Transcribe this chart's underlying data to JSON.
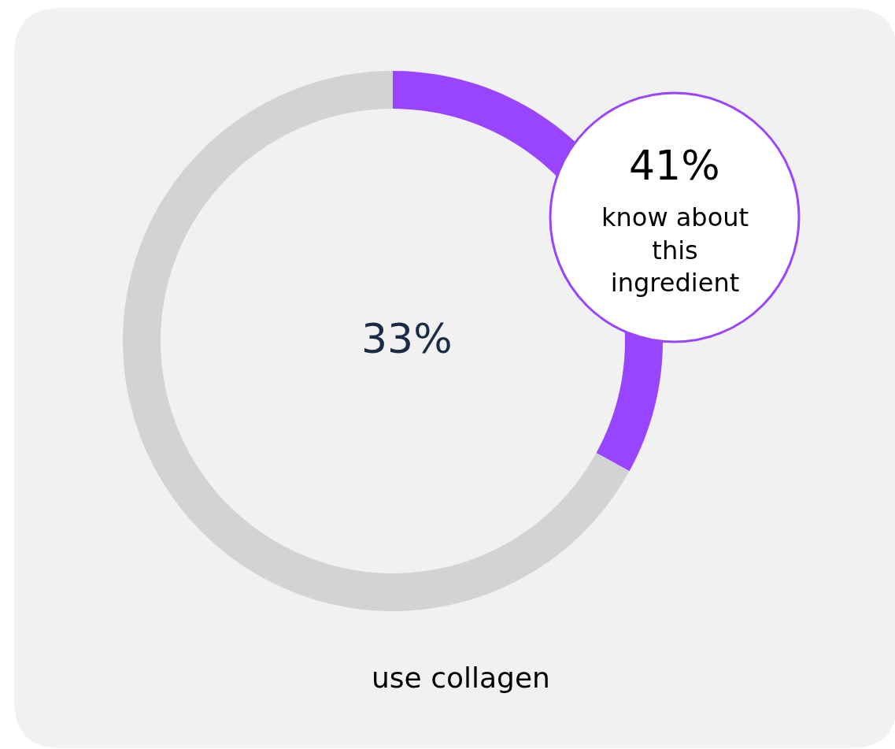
{
  "chart_data": {
    "type": "donut",
    "categories": [
      null,
      null
    ],
    "values": [
      33,
      67
    ],
    "colors": [
      "#9945ff",
      "#d3d3d3"
    ],
    "annotations": [
      "33%",
      "41%",
      "know about\nthis\ningredient",
      "use collagen"
    ]
  }
}
